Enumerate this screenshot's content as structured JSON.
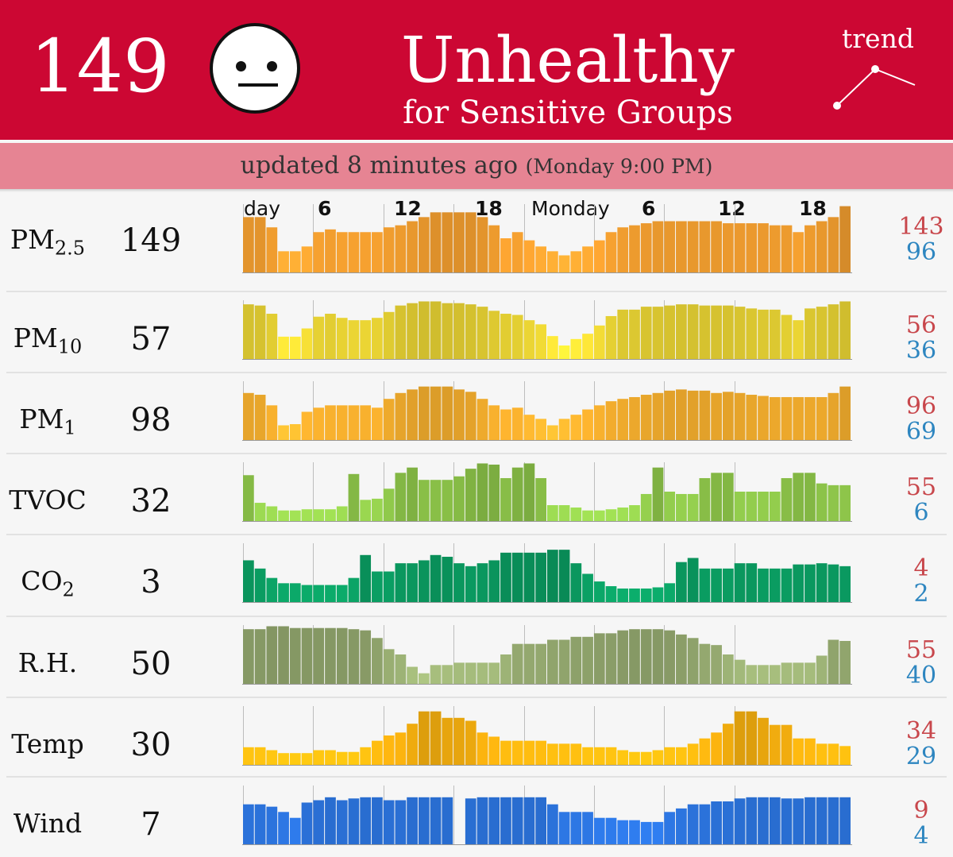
{
  "header": {
    "aqi": "149",
    "status_title": "Unhealthy",
    "status_subtitle": "for Sensitive Groups",
    "trend_label": "trend",
    "background_color": "#cc0733"
  },
  "update": {
    "text": "updated 8 minutes ago",
    "time": "(Monday 9:00 PM)"
  },
  "timeline": {
    "tick_labels": [
      "day",
      "6",
      "12",
      "18",
      "Monday",
      "6",
      "12",
      "18"
    ]
  },
  "metrics": [
    {
      "label_main": "PM",
      "label_sub": "2.5",
      "value": "149",
      "high": "143",
      "low": "96"
    },
    {
      "label_main": "PM",
      "label_sub": "10",
      "value": "57",
      "high": "56",
      "low": "36"
    },
    {
      "label_main": "PM",
      "label_sub": "1",
      "value": "98",
      "high": "96",
      "low": "69"
    },
    {
      "label_main": "TVOC",
      "label_sub": "",
      "value": "32",
      "high": "55",
      "low": "6"
    },
    {
      "label_main": "CO",
      "label_sub": "2",
      "value": "3",
      "high": "4",
      "low": "2"
    },
    {
      "label_main": "R.H.",
      "label_sub": "",
      "value": "50",
      "high": "55",
      "low": "40"
    },
    {
      "label_main": "Temp",
      "label_sub": "",
      "value": "30",
      "high": "34",
      "low": "29"
    },
    {
      "label_main": "Wind",
      "label_sub": "",
      "value": "7",
      "high": "9",
      "low": "4"
    }
  ],
  "chart_data": [
    {
      "type": "bar",
      "name": "PM2.5",
      "color": "#f5a030",
      "values": [
        0.81,
        0.81,
        0.66,
        0.31,
        0.31,
        0.38,
        0.59,
        0.63,
        0.59,
        0.59,
        0.59,
        0.59,
        0.66,
        0.69,
        0.75,
        0.81,
        0.88,
        0.88,
        0.88,
        0.88,
        0.81,
        0.69,
        0.5,
        0.59,
        0.47,
        0.38,
        0.31,
        0.25,
        0.31,
        0.38,
        0.47,
        0.59,
        0.66,
        0.69,
        0.72,
        0.75,
        0.75,
        0.75,
        0.75,
        0.75,
        0.75,
        0.72,
        0.72,
        0.72,
        0.72,
        0.69,
        0.69,
        0.59,
        0.69,
        0.75,
        0.81,
        0.97
      ]
    },
    {
      "type": "bar",
      "name": "PM10",
      "color": "#f0da35",
      "values": [
        0.93,
        0.91,
        0.77,
        0.38,
        0.38,
        0.52,
        0.72,
        0.77,
        0.7,
        0.66,
        0.66,
        0.7,
        0.8,
        0.91,
        0.95,
        0.98,
        0.98,
        0.95,
        0.95,
        0.93,
        0.89,
        0.82,
        0.77,
        0.75,
        0.66,
        0.59,
        0.39,
        0.23,
        0.34,
        0.43,
        0.57,
        0.73,
        0.84,
        0.84,
        0.89,
        0.89,
        0.91,
        0.93,
        0.93,
        0.91,
        0.91,
        0.91,
        0.89,
        0.86,
        0.84,
        0.84,
        0.75,
        0.66,
        0.86,
        0.89,
        0.93,
        0.98
      ]
    },
    {
      "type": "bar",
      "name": "PM1",
      "color": "#f7b02e",
      "values": [
        0.8,
        0.77,
        0.59,
        0.25,
        0.27,
        0.48,
        0.55,
        0.59,
        0.59,
        0.59,
        0.59,
        0.55,
        0.7,
        0.8,
        0.86,
        0.91,
        0.91,
        0.91,
        0.86,
        0.82,
        0.7,
        0.59,
        0.52,
        0.55,
        0.43,
        0.36,
        0.25,
        0.36,
        0.43,
        0.52,
        0.59,
        0.66,
        0.7,
        0.73,
        0.77,
        0.8,
        0.84,
        0.86,
        0.84,
        0.84,
        0.8,
        0.82,
        0.8,
        0.77,
        0.75,
        0.73,
        0.73,
        0.73,
        0.73,
        0.73,
        0.8,
        0.91
      ]
    },
    {
      "type": "bar",
      "name": "TVOC",
      "color": "#8ec64a",
      "values": [
        0.78,
        0.31,
        0.25,
        0.18,
        0.18,
        0.2,
        0.2,
        0.2,
        0.25,
        0.8,
        0.36,
        0.38,
        0.55,
        0.82,
        0.91,
        0.7,
        0.7,
        0.7,
        0.76,
        0.89,
        0.98,
        0.96,
        0.73,
        0.91,
        0.98,
        0.73,
        0.27,
        0.27,
        0.23,
        0.18,
        0.18,
        0.2,
        0.23,
        0.27,
        0.46,
        0.91,
        0.5,
        0.46,
        0.46,
        0.73,
        0.82,
        0.82,
        0.5,
        0.5,
        0.5,
        0.5,
        0.73,
        0.82,
        0.82,
        0.64,
        0.61,
        0.61
      ]
    },
    {
      "type": "bar",
      "name": "CO2",
      "color": "#0a9a60",
      "values": [
        0.71,
        0.57,
        0.41,
        0.32,
        0.32,
        0.29,
        0.29,
        0.29,
        0.29,
        0.41,
        0.8,
        0.52,
        0.52,
        0.66,
        0.66,
        0.71,
        0.8,
        0.77,
        0.66,
        0.61,
        0.66,
        0.71,
        0.84,
        0.84,
        0.84,
        0.84,
        0.89,
        0.89,
        0.66,
        0.48,
        0.35,
        0.27,
        0.23,
        0.23,
        0.23,
        0.25,
        0.32,
        0.68,
        0.75,
        0.57,
        0.57,
        0.57,
        0.66,
        0.66,
        0.57,
        0.57,
        0.57,
        0.64,
        0.64,
        0.66,
        0.64,
        0.61
      ]
    },
    {
      "type": "bar",
      "name": "R.H.",
      "color": "#98ad72",
      "values": [
        0.93,
        0.93,
        0.98,
        0.98,
        0.95,
        0.95,
        0.95,
        0.95,
        0.95,
        0.93,
        0.91,
        0.78,
        0.59,
        0.5,
        0.29,
        0.18,
        0.32,
        0.32,
        0.36,
        0.36,
        0.36,
        0.36,
        0.5,
        0.68,
        0.68,
        0.68,
        0.75,
        0.75,
        0.8,
        0.8,
        0.86,
        0.86,
        0.91,
        0.93,
        0.93,
        0.93,
        0.91,
        0.84,
        0.78,
        0.68,
        0.66,
        0.5,
        0.41,
        0.32,
        0.32,
        0.32,
        0.36,
        0.36,
        0.36,
        0.48,
        0.75,
        0.73
      ]
    },
    {
      "type": "bar",
      "name": "Temp",
      "color": "#f8b10f",
      "values": [
        0.3,
        0.3,
        0.25,
        0.2,
        0.2,
        0.2,
        0.25,
        0.25,
        0.22,
        0.22,
        0.3,
        0.41,
        0.5,
        0.55,
        0.7,
        0.91,
        0.91,
        0.8,
        0.8,
        0.75,
        0.55,
        0.48,
        0.41,
        0.41,
        0.41,
        0.41,
        0.36,
        0.36,
        0.36,
        0.3,
        0.3,
        0.3,
        0.25,
        0.22,
        0.22,
        0.25,
        0.3,
        0.3,
        0.36,
        0.45,
        0.55,
        0.7,
        0.91,
        0.91,
        0.8,
        0.68,
        0.68,
        0.45,
        0.45,
        0.36,
        0.36,
        0.32
      ]
    },
    {
      "type": "bar",
      "name": "Wind",
      "color": "#2c75e0",
      "values": [
        0.68,
        0.68,
        0.64,
        0.55,
        0.45,
        0.71,
        0.75,
        0.8,
        0.75,
        0.78,
        0.8,
        0.8,
        0.75,
        0.75,
        0.8,
        0.8,
        0.8,
        0.8,
        0.78,
        0.78,
        0.8,
        0.8,
        0.8,
        0.8,
        0.8,
        0.8,
        0.68,
        0.55,
        0.55,
        0.55,
        0.45,
        0.45,
        0.41,
        0.41,
        0.38,
        0.38,
        0.55,
        0.61,
        0.68,
        0.68,
        0.73,
        0.73,
        0.78,
        0.8,
        0.8,
        0.8,
        0.78,
        0.78,
        0.8,
        0.8,
        0.8,
        0.8
      ],
      "gap_after_index": 18
    }
  ]
}
